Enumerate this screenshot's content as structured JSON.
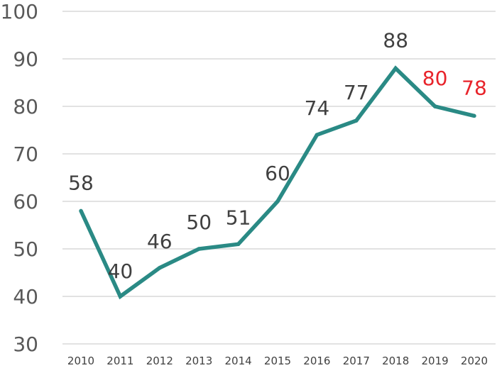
{
  "chart_data": {
    "type": "line",
    "title": "",
    "xlabel": "",
    "ylabel": "",
    "x": [
      "2010",
      "2011",
      "2012",
      "2013",
      "2014",
      "2015",
      "2016",
      "2017",
      "2018",
      "2019",
      "2020"
    ],
    "series": [
      {
        "values": [
          58,
          40,
          46,
          50,
          51,
          60,
          74,
          77,
          88,
          80,
          78
        ],
        "color": "#2a8a85"
      }
    ],
    "data_labels": [
      "58",
      "40",
      "46",
      "50",
      "51",
      "60",
      "74",
      "77",
      "88",
      "80",
      "78"
    ],
    "data_label_colors": [
      "#404040",
      "#404040",
      "#404040",
      "#404040",
      "#404040",
      "#404040",
      "#404040",
      "#404040",
      "#404040",
      "#e8232a",
      "#e8232a"
    ],
    "ylim": [
      30,
      100
    ],
    "yticks": [
      "30",
      "40",
      "50",
      "60",
      "70",
      "80",
      "90",
      "100"
    ],
    "grid": true,
    "legend": "none",
    "colors": {
      "line": "#2a8a85",
      "grid": "#d9d9d9",
      "label": "#404040",
      "highlight": "#e8232a"
    }
  }
}
